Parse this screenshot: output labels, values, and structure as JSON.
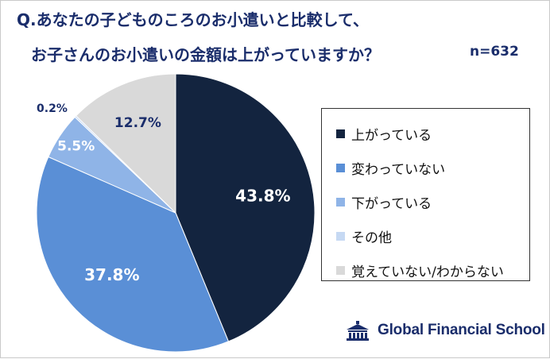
{
  "question": {
    "line1": "Q.あなたの子どものころのお小遣いと比較して、",
    "line2": "お子さんのお小遣いの金額は上がっていますか？",
    "sample": "n=632"
  },
  "chart_data": {
    "type": "pie",
    "labels": [
      "上がっている",
      "変わっていない",
      "下がっている",
      "その他",
      "覚えていない/わからない"
    ],
    "values": [
      43.8,
      37.8,
      5.5,
      0.2,
      12.7
    ],
    "data_labels": [
      "43.8%",
      "37.8%",
      "5.5%",
      "0.2%",
      "12.7%"
    ],
    "colors": [
      "#13243f",
      "#5a8fd6",
      "#8fb4e7",
      "#c6d9f3",
      "#d9d9d9"
    ],
    "label_colors": [
      "#ffffff",
      "#ffffff",
      "#ffffff",
      "#1a2d6b",
      "#1a2d6b"
    ],
    "start_direction": "12 o'clock",
    "order": "clockwise",
    "legend_position": "right"
  },
  "brand": {
    "name": "Global Financial School",
    "icon": "school-building-icon"
  }
}
